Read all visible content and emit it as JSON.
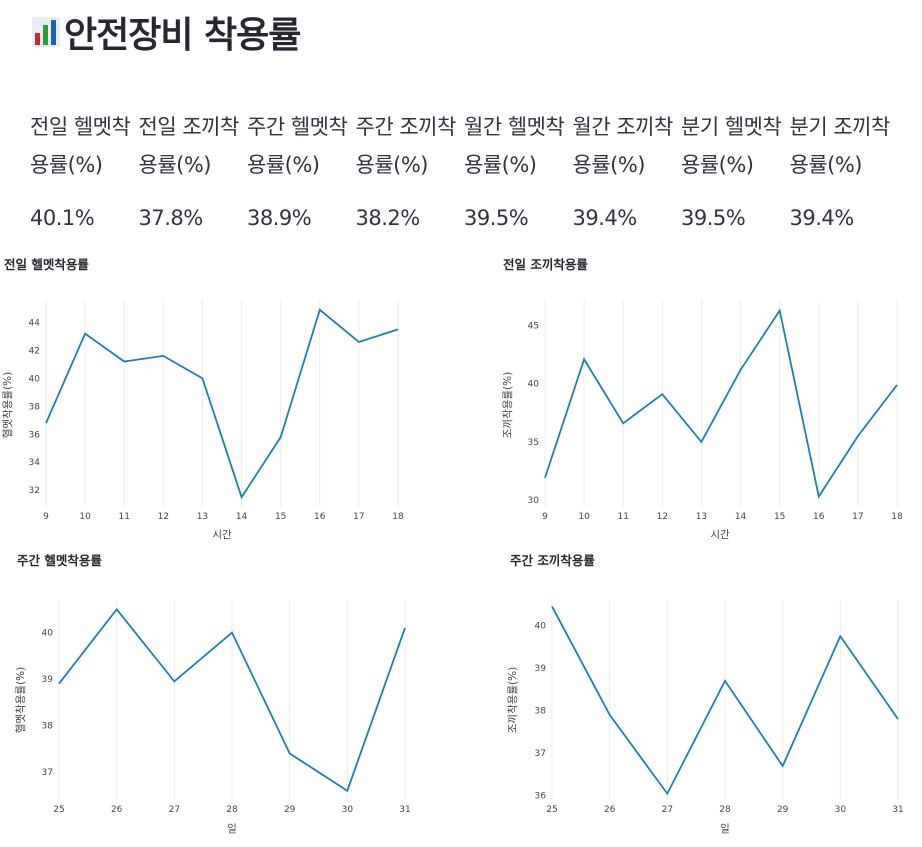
{
  "page": {
    "title": "안전장비 착용률",
    "icon": "bar-chart-icon"
  },
  "metrics": [
    {
      "label": "전일 헬멧착용률(%)",
      "value": "40.1%"
    },
    {
      "label": "전일 조끼착용률(%)",
      "value": "37.8%"
    },
    {
      "label": "주간 헬멧착용률(%)",
      "value": "38.9%"
    },
    {
      "label": "주간 조끼착용률(%)",
      "value": "38.2%"
    },
    {
      "label": "월간 헬멧착용률(%)",
      "value": "39.5%"
    },
    {
      "label": "월간 조끼착용률(%)",
      "value": "39.4%"
    },
    {
      "label": "분기 헬멧착용률(%)",
      "value": "39.5%"
    },
    {
      "label": "분기 조끼착용률(%)",
      "value": "39.4%"
    }
  ],
  "colors": {
    "line": "#1f7fac",
    "grid": "#ececec",
    "text": "#262730"
  },
  "chart_data": [
    {
      "type": "line",
      "title": "전일 헬멧착용률",
      "xlabel": "시간",
      "ylabel": "헬멧착용률(%)",
      "x": [
        9,
        10,
        11,
        12,
        13,
        14,
        15,
        16,
        17,
        18
      ],
      "y": [
        36.8,
        43.2,
        41.2,
        41.6,
        40.0,
        31.5,
        35.8,
        44.9,
        42.6,
        43.5
      ],
      "xticks": [
        9,
        10,
        11,
        12,
        13,
        14,
        15,
        16,
        17,
        18
      ],
      "yticks": [
        32,
        34,
        36,
        38,
        40,
        42,
        44
      ],
      "xlim": [
        9,
        18
      ],
      "ylim": [
        30.8,
        45.6
      ],
      "grid": "vertical"
    },
    {
      "type": "line",
      "title": "전일 조끼착용률",
      "xlabel": "시간",
      "ylabel": "조끼착용률(%)",
      "x": [
        9,
        10,
        11,
        12,
        13,
        14,
        15,
        16,
        17,
        18
      ],
      "y": [
        31.9,
        42.1,
        36.6,
        39.1,
        35.0,
        41.2,
        46.3,
        30.3,
        35.5,
        39.9
      ],
      "xticks": [
        9,
        10,
        11,
        12,
        13,
        14,
        15,
        16,
        17,
        18
      ],
      "yticks": [
        30,
        35,
        40,
        45
      ],
      "xlim": [
        9,
        18
      ],
      "ylim": [
        29.4,
        47.2
      ],
      "grid": "vertical"
    },
    {
      "type": "line",
      "title": "주간 헬멧착용률",
      "xlabel": "일",
      "ylabel": "헬멧착용률(%)",
      "x": [
        25,
        26,
        27,
        28,
        29,
        30,
        31
      ],
      "y": [
        38.9,
        40.5,
        38.95,
        40.0,
        37.4,
        36.6,
        40.1
      ],
      "xticks": [
        25,
        26,
        27,
        28,
        29,
        30,
        31
      ],
      "yticks": [
        37,
        38,
        39,
        40
      ],
      "xlim": [
        25,
        31
      ],
      "ylim": [
        36.4,
        40.7
      ],
      "grid": "vertical"
    },
    {
      "type": "line",
      "title": "주간 조끼착용률",
      "xlabel": "일",
      "ylabel": "조끼착용률(%)",
      "x": [
        25,
        26,
        27,
        28,
        29,
        30,
        31
      ],
      "y": [
        40.45,
        37.9,
        36.05,
        38.7,
        36.7,
        39.75,
        37.8
      ],
      "xticks": [
        25,
        26,
        27,
        28,
        29,
        30,
        31
      ],
      "yticks": [
        36,
        37,
        38,
        39,
        40
      ],
      "xlim": [
        25,
        31
      ],
      "ylim": [
        35.9,
        40.6
      ],
      "grid": "vertical"
    }
  ]
}
